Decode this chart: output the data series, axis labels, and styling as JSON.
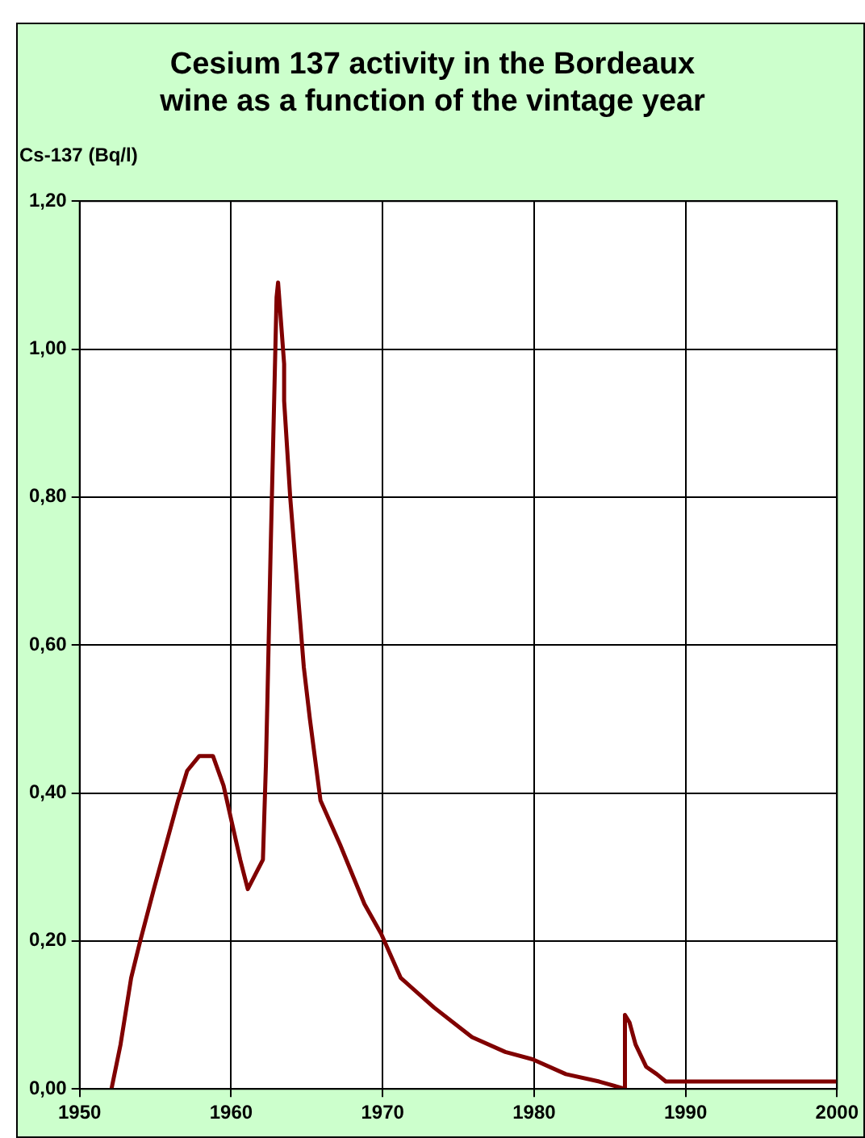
{
  "chart_data": {
    "type": "line",
    "title": "Cesium 137 activity in the Bordeaux\nwine as a function of the vintage year",
    "ylabel": "Cs-137 (Bq/l)",
    "x": [
      1952.1,
      1952.7,
      1953.4,
      1954.0,
      1954.9,
      1955.7,
      1956.5,
      1957.1,
      1957.9,
      1958.8,
      1959.5,
      1960.6,
      1961.1,
      1962.1,
      1962.3,
      1962.4,
      1962.6,
      1963.0,
      1963.1,
      1963.5,
      1963.5,
      1963.9,
      1964.8,
      1965.2,
      1965.9,
      1967.2,
      1968.8,
      1969.9,
      1971.2,
      1973.4,
      1975.9,
      1978.1,
      1979.9,
      1982.1,
      1984.3,
      1986.0,
      1986.0,
      1986.3,
      1986.7,
      1987.4,
      1988.1,
      1988.7,
      1992.0,
      1993.1,
      2000.0
    ],
    "series": [
      {
        "color": "#800000",
        "values": [
          0.0,
          0.06,
          0.15,
          0.2,
          0.27,
          0.33,
          0.39,
          0.43,
          0.45,
          0.45,
          0.41,
          0.31,
          0.27,
          0.31,
          0.44,
          0.53,
          0.72,
          1.07,
          1.09,
          0.98,
          0.93,
          0.8,
          0.57,
          0.5,
          0.39,
          0.33,
          0.25,
          0.21,
          0.15,
          0.11,
          0.07,
          0.05,
          0.04,
          0.02,
          0.01,
          0.0,
          0.1,
          0.09,
          0.06,
          0.03,
          0.02,
          0.01,
          0.01,
          0.01,
          0.01
        ]
      }
    ],
    "xlim": [
      1950,
      2000
    ],
    "xticks": [
      1950,
      1960,
      1970,
      1980,
      1990,
      2000
    ],
    "ylim": [
      0,
      1.2
    ],
    "yticks": [
      {
        "value": 0,
        "label": "0,00"
      },
      {
        "value": 0.2,
        "label": "0,20"
      },
      {
        "value": 0.4,
        "label": "0,40"
      },
      {
        "value": 0.6,
        "label": "0,60"
      },
      {
        "value": 0.8,
        "label": "0,80"
      },
      {
        "value": 1.0,
        "label": "1,00"
      },
      {
        "value": 1.2,
        "label": "1,20"
      }
    ],
    "grid": true,
    "legend": false,
    "marker": "none",
    "line_style": "solid"
  }
}
